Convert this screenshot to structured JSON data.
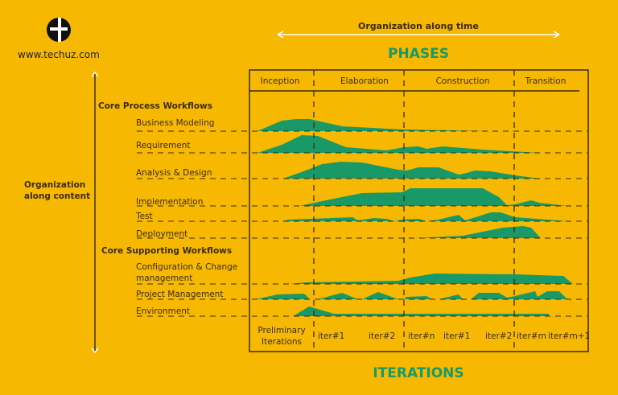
{
  "logo": {
    "text": "www.techuz.com",
    "icon": "cross-circle-icon"
  },
  "top_axis": {
    "label": "Organization along time"
  },
  "phases_title": "PHASES",
  "iterations_title": "ITERATIONS",
  "side_axis": {
    "label_line1": "Organization",
    "label_line2": "along content"
  },
  "phases": [
    "Inception",
    "Elaboration",
    "Construction",
    "Transition"
  ],
  "groups": {
    "core_process": "Core Process Workflows",
    "core_supporting": "Core Supporting Workflows"
  },
  "workflows": [
    "Business Modeling",
    "Requirement",
    "Analysis & Design",
    "Implementation",
    "Test",
    "Deployment",
    "Configuration & Change",
    "management",
    "Project Management",
    "Environment"
  ],
  "iterations": {
    "preliminary_line1": "Preliminary",
    "preliminary_line2": "Iterations",
    "labels": [
      "iter#1",
      "iter#2",
      "iter#n",
      "iter#1",
      "iter#2",
      "iter#m",
      "iter#m+1"
    ]
  },
  "colors": {
    "background": "#F7B801",
    "hump": "#1A9968",
    "text": "#3B2C0E",
    "title": "#1A9968"
  }
}
